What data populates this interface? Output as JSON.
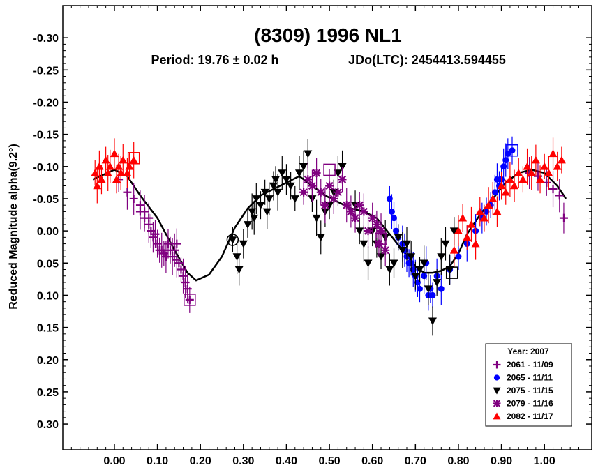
{
  "chart_data": {
    "type": "scatter",
    "title": "(8309) 1996 NL1",
    "subtitle_period": "Period: 19.76 ± 0.02 h",
    "subtitle_epoch": "JDo(LTC): 2454413.594455",
    "ylabel": "Reduced Magnitude alpha(9.2°)",
    "xlabel": "",
    "xlim": [
      -0.12,
      1.11
    ],
    "ylim": [
      -0.35,
      0.34
    ],
    "y_inverted": true,
    "x_ticks": [
      "0.00",
      "0.10",
      "0.20",
      "0.30",
      "0.40",
      "0.50",
      "0.60",
      "0.70",
      "0.80",
      "0.90",
      "1.00"
    ],
    "y_ticks": [
      "-0.30",
      "-0.25",
      "-0.20",
      "-0.15",
      "-0.10",
      "-0.05",
      "0.00",
      "0.05",
      "0.10",
      "0.15",
      "0.20",
      "0.25",
      "0.30"
    ],
    "grid": false,
    "legend": {
      "placement": "bottom-right",
      "title": "Year: 2007",
      "entries": [
        {
          "label": "2061 - 11/09",
          "color": "#800080",
          "marker": "plus"
        },
        {
          "label": "2065 - 11/11",
          "color": "#0000ff",
          "marker": "circle"
        },
        {
          "label": "2075 - 11/15",
          "color": "#000000",
          "marker": "triangle-down"
        },
        {
          "label": "2079 - 11/16",
          "color": "#800080",
          "marker": "asterisk"
        },
        {
          "label": "2082 - 11/17",
          "color": "#ff0000",
          "marker": "triangle-up"
        }
      ]
    },
    "fit_curve": {
      "x": [
        -0.05,
        0.0,
        0.03,
        0.06,
        0.1,
        0.14,
        0.17,
        0.19,
        0.22,
        0.25,
        0.28,
        0.31,
        0.34,
        0.37,
        0.4,
        0.43,
        0.46,
        0.49,
        0.52,
        0.55,
        0.58,
        0.61,
        0.64,
        0.67,
        0.7,
        0.72,
        0.74,
        0.76,
        0.78,
        0.8,
        0.82,
        0.85,
        0.88,
        0.91,
        0.94,
        0.97,
        1.0,
        1.03,
        1.05
      ],
      "y": [
        -0.08,
        -0.095,
        -0.085,
        -0.055,
        -0.02,
        0.03,
        0.065,
        0.077,
        0.068,
        0.04,
        -0.005,
        -0.035,
        -0.055,
        -0.065,
        -0.075,
        -0.085,
        -0.07,
        -0.055,
        -0.045,
        -0.035,
        -0.03,
        -0.02,
        0.005,
        0.03,
        0.055,
        0.065,
        0.065,
        0.062,
        0.055,
        0.035,
        0.005,
        -0.025,
        -0.05,
        -0.075,
        -0.09,
        -0.095,
        -0.09,
        -0.07,
        -0.05
      ]
    },
    "series": [
      {
        "session": "2061",
        "x": [
          0.01,
          0.03,
          0.045,
          0.06,
          0.07,
          0.08,
          0.085,
          0.09,
          0.1,
          0.105,
          0.11,
          0.12,
          0.125,
          0.13,
          0.135,
          0.14,
          0.145,
          0.15,
          0.155,
          0.16,
          0.165,
          0.17,
          0.175,
          0.06,
          0.07,
          0.08,
          0.095,
          0.115,
          0.145,
          0.965,
          0.985,
          1.005,
          1.02,
          1.035,
          1.045
        ],
        "y": [
          -0.08,
          -0.06,
          -0.05,
          -0.04,
          -0.02,
          -0.01,
          0.0,
          0.01,
          0.02,
          0.03,
          0.03,
          0.04,
          0.02,
          0.03,
          0.04,
          0.03,
          0.02,
          0.05,
          0.06,
          0.07,
          0.08,
          0.09,
          0.107,
          -0.03,
          -0.03,
          -0.02,
          0.005,
          0.035,
          0.045,
          -0.09,
          -0.085,
          -0.075,
          -0.065,
          -0.055,
          -0.02
        ]
      },
      {
        "session": "2065",
        "x": [
          0.64,
          0.645,
          0.65,
          0.655,
          0.66,
          0.67,
          0.675,
          0.68,
          0.685,
          0.69,
          0.695,
          0.7,
          0.705,
          0.71,
          0.72,
          0.725,
          0.73,
          0.735,
          0.74,
          0.75,
          0.76,
          0.78,
          0.8,
          0.82,
          0.84,
          0.855,
          0.865,
          0.875,
          0.885,
          0.89,
          0.895,
          0.9,
          0.905,
          0.91,
          0.915,
          0.925
        ],
        "y": [
          -0.05,
          -0.03,
          -0.02,
          0.0,
          0.01,
          0.02,
          0.03,
          0.04,
          0.05,
          0.05,
          0.06,
          0.07,
          0.08,
          0.09,
          0.07,
          0.05,
          0.1,
          0.09,
          0.1,
          0.07,
          0.09,
          0.06,
          0.04,
          0.02,
          0.0,
          -0.02,
          -0.03,
          -0.04,
          -0.06,
          -0.08,
          -0.07,
          -0.08,
          -0.1,
          -0.11,
          -0.12,
          -0.125
        ]
      },
      {
        "session": "2075",
        "x": [
          0.275,
          0.285,
          0.29,
          0.3,
          0.31,
          0.32,
          0.325,
          0.33,
          0.34,
          0.35,
          0.355,
          0.36,
          0.37,
          0.375,
          0.38,
          0.39,
          0.4,
          0.41,
          0.42,
          0.43,
          0.44,
          0.45,
          0.46,
          0.47,
          0.48,
          0.49,
          0.5,
          0.51,
          0.52,
          0.53,
          0.56,
          0.57,
          0.58,
          0.59,
          0.6,
          0.61,
          0.62,
          0.63,
          0.64,
          0.65,
          0.66,
          0.67,
          0.68,
          0.69,
          0.7,
          0.71,
          0.72,
          0.73,
          0.74,
          0.75,
          0.76,
          0.77,
          0.78,
          0.79
        ],
        "y": [
          0.014,
          0.04,
          0.06,
          0.02,
          -0.01,
          -0.03,
          -0.02,
          -0.05,
          -0.04,
          -0.06,
          -0.03,
          -0.05,
          -0.07,
          -0.08,
          -0.06,
          -0.09,
          -0.08,
          -0.07,
          -0.05,
          -0.09,
          -0.1,
          -0.12,
          -0.05,
          -0.02,
          0.01,
          -0.03,
          -0.04,
          -0.06,
          -0.09,
          -0.1,
          -0.04,
          0.0,
          0.02,
          0.05,
          0.0,
          0.02,
          0.04,
          0.01,
          0.06,
          0.05,
          0.01,
          0.03,
          0.02,
          0.04,
          0.07,
          0.06,
          0.05,
          0.09,
          0.14,
          0.08,
          0.04,
          0.02,
          0.06,
          0.0
        ]
      },
      {
        "session": "2079",
        "x": [
          0.44,
          0.45,
          0.46,
          0.47,
          0.48,
          0.49,
          0.5,
          0.51,
          0.52,
          0.53,
          0.54,
          0.55,
          0.56,
          0.57,
          0.58,
          0.59,
          0.6,
          0.61,
          0.615,
          0.62,
          0.63
        ],
        "y": [
          -0.06,
          -0.08,
          -0.07,
          -0.09,
          -0.06,
          -0.04,
          -0.07,
          -0.05,
          -0.06,
          -0.08,
          -0.04,
          -0.03,
          -0.02,
          -0.04,
          -0.03,
          0.0,
          -0.02,
          -0.01,
          0.02,
          0.0,
          0.03
        ]
      },
      {
        "session": "2082",
        "x": [
          -0.045,
          -0.04,
          -0.035,
          -0.03,
          -0.02,
          -0.015,
          -0.01,
          0.0,
          0.005,
          0.01,
          0.015,
          0.02,
          0.03,
          0.035,
          0.045,
          0.79,
          0.8,
          0.81,
          0.82,
          0.83,
          0.84,
          0.85,
          0.86,
          0.87,
          0.88,
          0.89,
          0.9,
          0.91,
          0.92,
          0.93,
          0.94,
          0.95,
          0.96,
          0.97,
          0.98,
          0.99,
          1.0,
          1.01,
          1.02,
          1.03,
          1.04
        ],
        "y": [
          -0.09,
          -0.07,
          -0.1,
          -0.08,
          -0.11,
          -0.09,
          -0.1,
          -0.12,
          -0.08,
          -0.1,
          -0.09,
          -0.11,
          -0.09,
          -0.1,
          -0.11,
          0.03,
          0.0,
          -0.02,
          0.01,
          -0.01,
          0.02,
          -0.03,
          -0.02,
          -0.04,
          -0.05,
          -0.03,
          -0.07,
          -0.06,
          -0.08,
          -0.07,
          -0.09,
          -0.08,
          -0.1,
          -0.09,
          -0.11,
          -0.08,
          -0.1,
          -0.09,
          -0.12,
          -0.1,
          -0.11
        ]
      }
    ],
    "annotations": [
      {
        "marker": "circle-open",
        "color": "#000000",
        "x": 0.275,
        "y": 0.014
      },
      {
        "marker": "square-open",
        "color": "#ff0000",
        "x": 0.045,
        "y": -0.113
      },
      {
        "marker": "square-open",
        "color": "#800080",
        "x": 0.175,
        "y": 0.107
      },
      {
        "marker": "square-open",
        "color": "#800080",
        "x": 0.5,
        "y": -0.095
      },
      {
        "marker": "square-open",
        "color": "#800080",
        "x": 0.62,
        "y": 0.012
      },
      {
        "marker": "square-open",
        "color": "#000000",
        "x": 0.785,
        "y": 0.065
      },
      {
        "marker": "square-open",
        "color": "#0000ff",
        "x": 0.925,
        "y": -0.125
      }
    ]
  }
}
